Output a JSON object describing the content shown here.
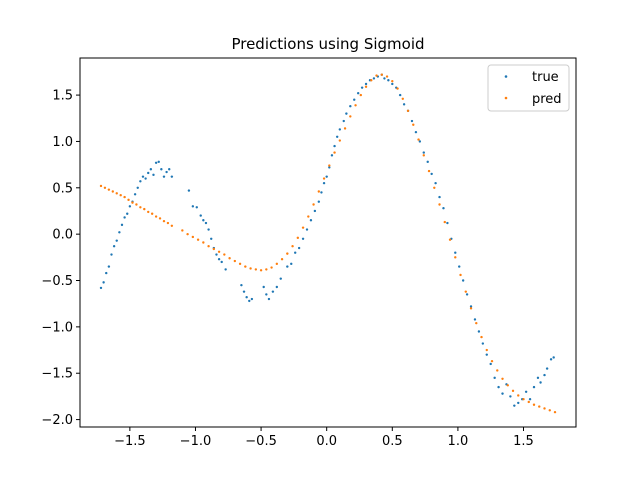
{
  "chart_data": {
    "type": "scatter",
    "title": "Predictions using Sigmoid",
    "xlabel": "",
    "ylabel": "",
    "xlim": [
      -1.88,
      1.9
    ],
    "ylim": [
      -2.08,
      1.9
    ],
    "x_ticks": [
      -1.5,
      -1.0,
      -0.5,
      0.0,
      0.5,
      1.0,
      1.5
    ],
    "x_tick_labels": [
      "−1.5",
      "−1.0",
      "−0.5",
      "0.0",
      "0.5",
      "1.0",
      "1.5"
    ],
    "y_ticks": [
      1.5,
      1.0,
      0.5,
      0.0,
      -0.5,
      -1.0,
      -1.5,
      -2.0
    ],
    "y_tick_labels": [
      "1.5",
      "1.0",
      "0.5",
      "0.0",
      "−0.5",
      "−1.0",
      "−1.5",
      "−2.0"
    ],
    "grid": false,
    "legend_position": "top-right",
    "series": [
      {
        "name": "true",
        "color": "#1f77b4",
        "points": [
          [
            -1.72,
            -0.58
          ],
          [
            -1.7,
            -0.52
          ],
          [
            -1.68,
            -0.42
          ],
          [
            -1.66,
            -0.35
          ],
          [
            -1.64,
            -0.22
          ],
          [
            -1.62,
            -0.13
          ],
          [
            -1.6,
            -0.07
          ],
          [
            -1.58,
            0.02
          ],
          [
            -1.56,
            0.1
          ],
          [
            -1.54,
            0.18
          ],
          [
            -1.52,
            0.22
          ],
          [
            -1.5,
            0.3
          ],
          [
            -1.48,
            0.35
          ],
          [
            -1.46,
            0.43
          ],
          [
            -1.44,
            0.5
          ],
          [
            -1.42,
            0.57
          ],
          [
            -1.4,
            0.62
          ],
          [
            -1.38,
            0.6
          ],
          [
            -1.36,
            0.66
          ],
          [
            -1.34,
            0.7
          ],
          [
            -1.32,
            0.64
          ],
          [
            -1.3,
            0.77
          ],
          [
            -1.28,
            0.78
          ],
          [
            -1.26,
            0.7
          ],
          [
            -1.24,
            0.62
          ],
          [
            -1.22,
            0.67
          ],
          [
            -1.2,
            0.7
          ],
          [
            -1.18,
            0.62
          ],
          [
            -1.05,
            0.47
          ],
          [
            -1.02,
            0.3
          ],
          [
            -0.99,
            0.29
          ],
          [
            -0.96,
            0.2
          ],
          [
            -0.94,
            0.15
          ],
          [
            -0.92,
            0.12
          ],
          [
            -0.9,
            0.05
          ],
          [
            -0.88,
            -0.05
          ],
          [
            -0.86,
            -0.15
          ],
          [
            -0.84,
            -0.22
          ],
          [
            -0.82,
            -0.27
          ],
          [
            -0.8,
            -0.3
          ],
          [
            -0.77,
            -0.38
          ],
          [
            -0.65,
            -0.55
          ],
          [
            -0.63,
            -0.62
          ],
          [
            -0.61,
            -0.68
          ],
          [
            -0.59,
            -0.72
          ],
          [
            -0.57,
            -0.7
          ],
          [
            -0.48,
            -0.57
          ],
          [
            -0.46,
            -0.65
          ],
          [
            -0.44,
            -0.7
          ],
          [
            -0.41,
            -0.62
          ],
          [
            -0.38,
            -0.57
          ],
          [
            -0.35,
            -0.48
          ],
          [
            -0.3,
            -0.35
          ],
          [
            -0.27,
            -0.32
          ],
          [
            -0.24,
            -0.2
          ],
          [
            -0.21,
            -0.15
          ],
          [
            -0.18,
            -0.05
          ],
          [
            -0.15,
            0.05
          ],
          [
            -0.12,
            0.15
          ],
          [
            -0.09,
            0.25
          ],
          [
            -0.06,
            0.35
          ],
          [
            -0.04,
            0.45
          ],
          [
            -0.02,
            0.55
          ],
          [
            0.0,
            0.62
          ],
          [
            0.02,
            0.72
          ],
          [
            0.04,
            0.85
          ],
          [
            0.06,
            0.95
          ],
          [
            0.08,
            1.05
          ],
          [
            0.1,
            1.13
          ],
          [
            0.13,
            1.22
          ],
          [
            0.15,
            1.3
          ],
          [
            0.18,
            1.38
          ],
          [
            0.21,
            1.45
          ],
          [
            0.24,
            1.52
          ],
          [
            0.27,
            1.58
          ],
          [
            0.3,
            1.62
          ],
          [
            0.33,
            1.66
          ],
          [
            0.36,
            1.68
          ],
          [
            0.39,
            1.7
          ],
          [
            0.42,
            1.72
          ],
          [
            0.44,
            1.68
          ],
          [
            0.47,
            1.66
          ],
          [
            0.5,
            1.62
          ],
          [
            0.53,
            1.58
          ],
          [
            0.56,
            1.5
          ],
          [
            0.59,
            1.4
          ],
          [
            0.62,
            1.33
          ],
          [
            0.65,
            1.22
          ],
          [
            0.68,
            1.1
          ],
          [
            0.71,
            1.0
          ],
          [
            0.74,
            0.88
          ],
          [
            0.77,
            0.78
          ],
          [
            0.8,
            0.65
          ],
          [
            0.83,
            0.55
          ],
          [
            0.86,
            0.4
          ],
          [
            0.89,
            0.28
          ],
          [
            0.92,
            0.12
          ],
          [
            0.95,
            -0.05
          ],
          [
            0.98,
            -0.2
          ],
          [
            1.01,
            -0.35
          ],
          [
            1.04,
            -0.5
          ],
          [
            1.07,
            -0.65
          ],
          [
            1.1,
            -0.78
          ],
          [
            1.13,
            -0.92
          ],
          [
            1.16,
            -1.05
          ],
          [
            1.19,
            -1.18
          ],
          [
            1.22,
            -1.3
          ],
          [
            1.25,
            -1.4
          ],
          [
            1.28,
            -1.55
          ],
          [
            1.31,
            -1.65
          ],
          [
            1.34,
            -1.72
          ],
          [
            1.37,
            -1.62
          ],
          [
            1.4,
            -1.75
          ],
          [
            1.43,
            -1.85
          ],
          [
            1.46,
            -1.82
          ],
          [
            1.49,
            -1.78
          ],
          [
            1.52,
            -1.7
          ],
          [
            1.55,
            -1.78
          ],
          [
            1.58,
            -1.65
          ],
          [
            1.61,
            -1.55
          ],
          [
            1.63,
            -1.6
          ],
          [
            1.66,
            -1.52
          ],
          [
            1.68,
            -1.45
          ],
          [
            1.71,
            -1.35
          ],
          [
            1.73,
            -1.33
          ]
        ]
      },
      {
        "name": "pred",
        "color": "#ff7f0e",
        "points": [
          [
            -1.72,
            0.52
          ],
          [
            -1.69,
            0.5
          ],
          [
            -1.66,
            0.48
          ],
          [
            -1.63,
            0.46
          ],
          [
            -1.6,
            0.44
          ],
          [
            -1.57,
            0.42
          ],
          [
            -1.54,
            0.4
          ],
          [
            -1.51,
            0.37
          ],
          [
            -1.48,
            0.34
          ],
          [
            -1.45,
            0.32
          ],
          [
            -1.42,
            0.29
          ],
          [
            -1.39,
            0.27
          ],
          [
            -1.36,
            0.24
          ],
          [
            -1.33,
            0.22
          ],
          [
            -1.3,
            0.19
          ],
          [
            -1.27,
            0.17
          ],
          [
            -1.24,
            0.14
          ],
          [
            -1.21,
            0.12
          ],
          [
            -1.18,
            0.09
          ],
          [
            -1.1,
            0.04
          ],
          [
            -1.06,
            0.0
          ],
          [
            -1.02,
            -0.03
          ],
          [
            -0.98,
            -0.06
          ],
          [
            -0.94,
            -0.09
          ],
          [
            -0.9,
            -0.13
          ],
          [
            -0.86,
            -0.16
          ],
          [
            -0.82,
            -0.19
          ],
          [
            -0.78,
            -0.22
          ],
          [
            -0.74,
            -0.26
          ],
          [
            -0.7,
            -0.29
          ],
          [
            -0.66,
            -0.32
          ],
          [
            -0.62,
            -0.35
          ],
          [
            -0.58,
            -0.37
          ],
          [
            -0.54,
            -0.38
          ],
          [
            -0.5,
            -0.39
          ],
          [
            -0.46,
            -0.38
          ],
          [
            -0.42,
            -0.36
          ],
          [
            -0.38,
            -0.32
          ],
          [
            -0.34,
            -0.27
          ],
          [
            -0.3,
            -0.21
          ],
          [
            -0.26,
            -0.13
          ],
          [
            -0.22,
            -0.04
          ],
          [
            -0.18,
            0.07
          ],
          [
            -0.14,
            0.19
          ],
          [
            -0.1,
            0.32
          ],
          [
            -0.06,
            0.46
          ],
          [
            -0.02,
            0.6
          ],
          [
            0.02,
            0.74
          ],
          [
            0.06,
            0.88
          ],
          [
            0.1,
            1.01
          ],
          [
            0.14,
            1.14
          ],
          [
            0.18,
            1.27
          ],
          [
            0.22,
            1.39
          ],
          [
            0.26,
            1.5
          ],
          [
            0.3,
            1.59
          ],
          [
            0.34,
            1.66
          ],
          [
            0.38,
            1.71
          ],
          [
            0.42,
            1.72
          ],
          [
            0.46,
            1.7
          ],
          [
            0.5,
            1.65
          ],
          [
            0.54,
            1.57
          ],
          [
            0.58,
            1.46
          ],
          [
            0.62,
            1.33
          ],
          [
            0.66,
            1.18
          ],
          [
            0.7,
            1.02
          ],
          [
            0.74,
            0.85
          ],
          [
            0.78,
            0.68
          ],
          [
            0.82,
            0.5
          ],
          [
            0.86,
            0.32
          ],
          [
            0.9,
            0.13
          ],
          [
            0.94,
            -0.06
          ],
          [
            0.98,
            -0.25
          ],
          [
            1.02,
            -0.44
          ],
          [
            1.06,
            -0.62
          ],
          [
            1.1,
            -0.8
          ],
          [
            1.14,
            -0.96
          ],
          [
            1.18,
            -1.11
          ],
          [
            1.22,
            -1.25
          ],
          [
            1.26,
            -1.37
          ],
          [
            1.3,
            -1.47
          ],
          [
            1.34,
            -1.56
          ],
          [
            1.38,
            -1.63
          ],
          [
            1.42,
            -1.69
          ],
          [
            1.46,
            -1.74
          ],
          [
            1.5,
            -1.78
          ],
          [
            1.54,
            -1.81
          ],
          [
            1.58,
            -1.84
          ],
          [
            1.62,
            -1.86
          ],
          [
            1.66,
            -1.88
          ],
          [
            1.7,
            -1.9
          ],
          [
            1.74,
            -1.92
          ]
        ]
      }
    ]
  }
}
